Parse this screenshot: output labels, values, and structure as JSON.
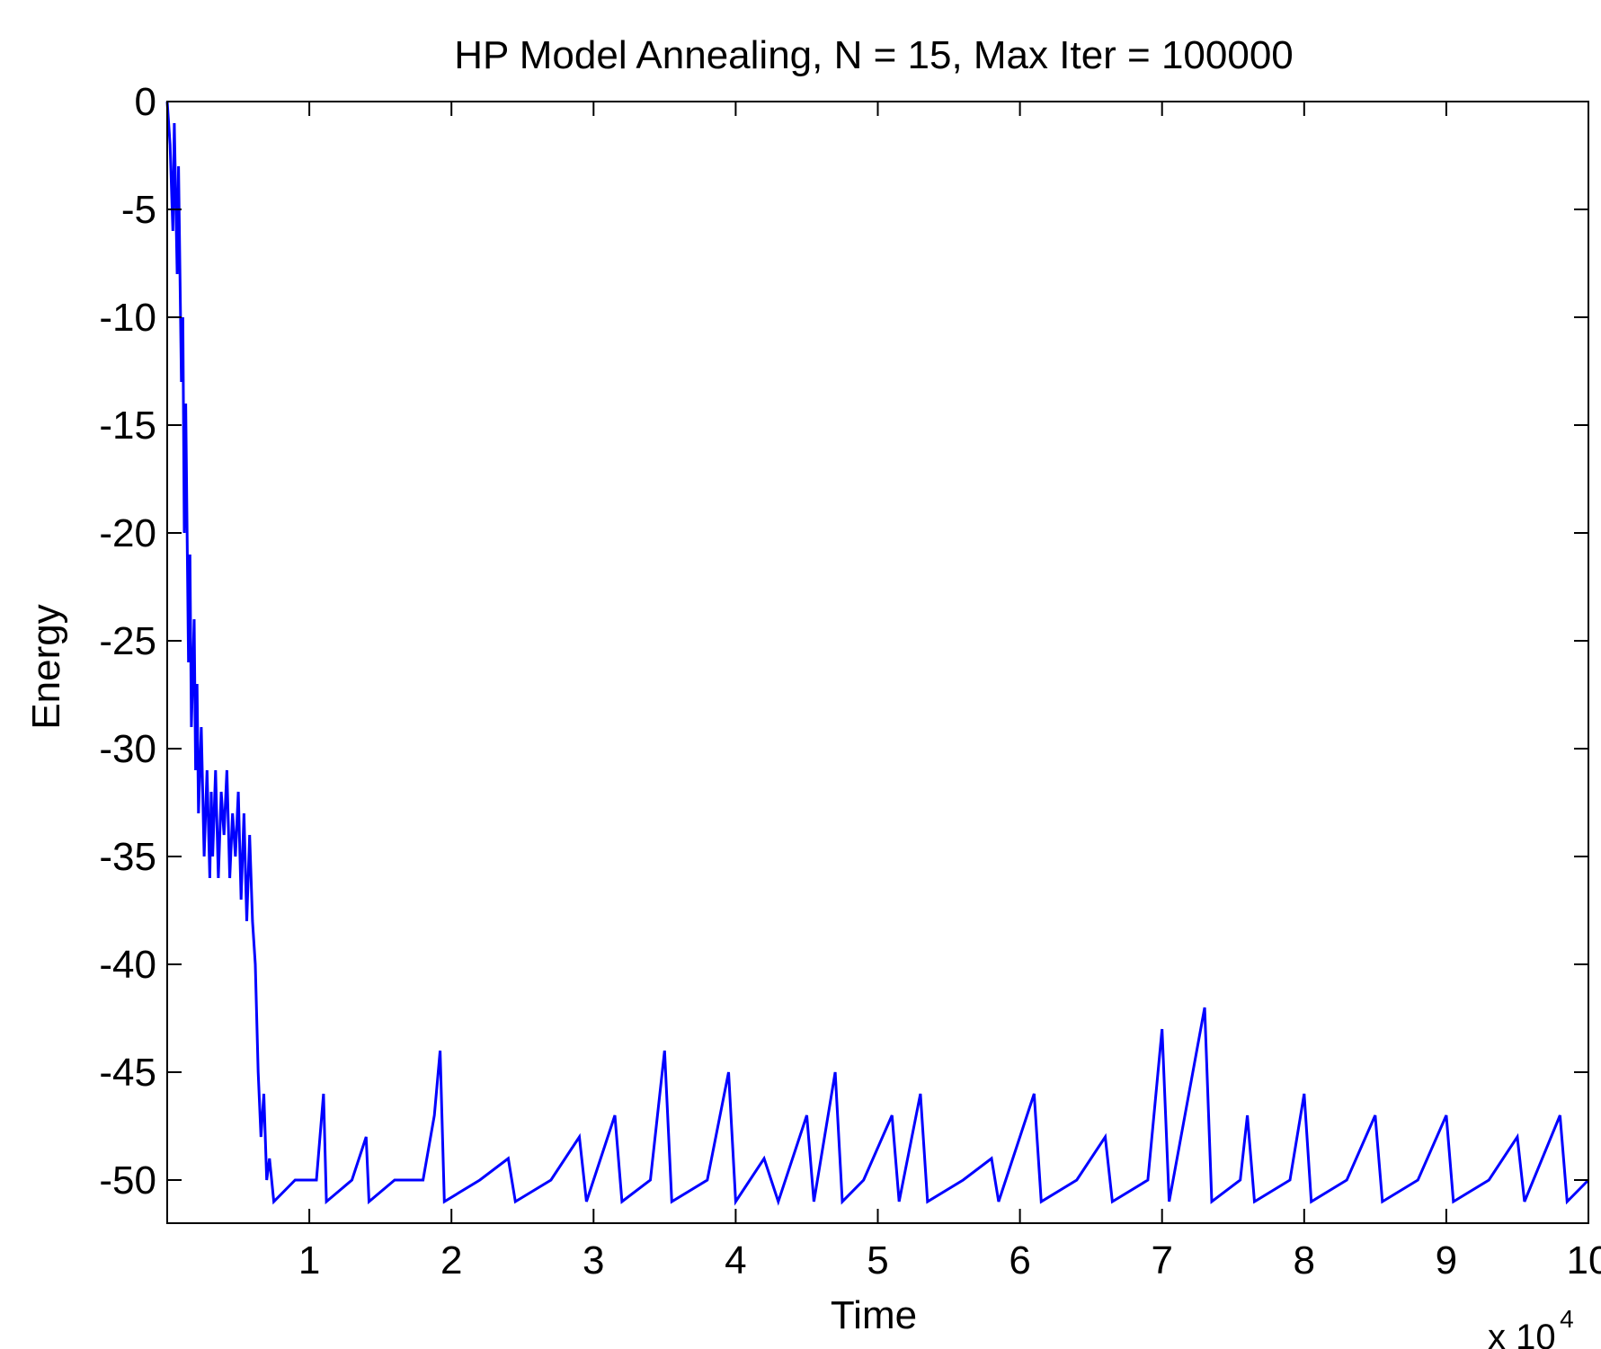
{
  "chart_data": {
    "type": "line",
    "title": "HP Model Annealing, N = 15, Max Iter = 100000",
    "xlabel": "Time",
    "ylabel": "Energy",
    "x_multiplier": {
      "base": "x 10",
      "exponent": "4"
    },
    "xlim": [
      0,
      10
    ],
    "ylim": [
      -52,
      0
    ],
    "xticks": [
      1,
      2,
      3,
      4,
      5,
      6,
      7,
      8,
      9,
      10
    ],
    "xtick_labels": [
      "1",
      "2",
      "3",
      "4",
      "5",
      "6",
      "7",
      "8",
      "9",
      "10"
    ],
    "yticks": [
      0,
      -5,
      -10,
      -15,
      -20,
      -25,
      -30,
      -35,
      -40,
      -45,
      -50
    ],
    "ytick_labels": [
      "0",
      "-5",
      "-10",
      "-15",
      "-20",
      "-25",
      "-30",
      "-35",
      "-40",
      "-45",
      "-50"
    ],
    "grid": false,
    "series": [
      {
        "color": "#0000ff",
        "points": [
          [
            0,
            0
          ],
          [
            0.02,
            -2
          ],
          [
            0.04,
            -6
          ],
          [
            0.05,
            -1
          ],
          [
            0.07,
            -8
          ],
          [
            0.08,
            -3
          ],
          [
            0.1,
            -13
          ],
          [
            0.11,
            -10
          ],
          [
            0.12,
            -20
          ],
          [
            0.13,
            -14
          ],
          [
            0.15,
            -26
          ],
          [
            0.16,
            -21
          ],
          [
            0.17,
            -29
          ],
          [
            0.19,
            -24
          ],
          [
            0.2,
            -31
          ],
          [
            0.21,
            -27
          ],
          [
            0.22,
            -33
          ],
          [
            0.24,
            -29
          ],
          [
            0.26,
            -35
          ],
          [
            0.28,
            -31
          ],
          [
            0.3,
            -36
          ],
          [
            0.31,
            -32
          ],
          [
            0.32,
            -35
          ],
          [
            0.34,
            -31
          ],
          [
            0.36,
            -36
          ],
          [
            0.38,
            -32
          ],
          [
            0.4,
            -34
          ],
          [
            0.42,
            -31
          ],
          [
            0.44,
            -36
          ],
          [
            0.46,
            -33
          ],
          [
            0.48,
            -35
          ],
          [
            0.5,
            -32
          ],
          [
            0.52,
            -37
          ],
          [
            0.54,
            -33
          ],
          [
            0.56,
            -38
          ],
          [
            0.58,
            -34
          ],
          [
            0.6,
            -38
          ],
          [
            0.62,
            -40
          ],
          [
            0.64,
            -45
          ],
          [
            0.66,
            -48
          ],
          [
            0.68,
            -46
          ],
          [
            0.7,
            -50
          ],
          [
            0.72,
            -49
          ],
          [
            0.75,
            -51
          ],
          [
            0.9,
            -50
          ],
          [
            1.05,
            -50
          ],
          [
            1.1,
            -46
          ],
          [
            1.12,
            -51
          ],
          [
            1.3,
            -50
          ],
          [
            1.4,
            -48
          ],
          [
            1.42,
            -51
          ],
          [
            1.6,
            -50
          ],
          [
            1.8,
            -50
          ],
          [
            1.88,
            -47
          ],
          [
            1.92,
            -44
          ],
          [
            1.95,
            -51
          ],
          [
            2.2,
            -50
          ],
          [
            2.4,
            -49
          ],
          [
            2.45,
            -51
          ],
          [
            2.7,
            -50
          ],
          [
            2.9,
            -48
          ],
          [
            2.95,
            -51
          ],
          [
            3.15,
            -47
          ],
          [
            3.2,
            -51
          ],
          [
            3.4,
            -50
          ],
          [
            3.5,
            -44
          ],
          [
            3.55,
            -51
          ],
          [
            3.8,
            -50
          ],
          [
            3.95,
            -45
          ],
          [
            4.0,
            -51
          ],
          [
            4.2,
            -49
          ],
          [
            4.3,
            -51
          ],
          [
            4.5,
            -47
          ],
          [
            4.55,
            -51
          ],
          [
            4.7,
            -45
          ],
          [
            4.75,
            -51
          ],
          [
            4.9,
            -50
          ],
          [
            5.1,
            -47
          ],
          [
            5.15,
            -51
          ],
          [
            5.3,
            -46
          ],
          [
            5.35,
            -51
          ],
          [
            5.6,
            -50
          ],
          [
            5.8,
            -49
          ],
          [
            5.85,
            -51
          ],
          [
            6.1,
            -46
          ],
          [
            6.15,
            -51
          ],
          [
            6.4,
            -50
          ],
          [
            6.6,
            -48
          ],
          [
            6.65,
            -51
          ],
          [
            6.9,
            -50
          ],
          [
            7.0,
            -43
          ],
          [
            7.05,
            -51
          ],
          [
            7.3,
            -42
          ],
          [
            7.35,
            -51
          ],
          [
            7.55,
            -50
          ],
          [
            7.6,
            -47
          ],
          [
            7.65,
            -51
          ],
          [
            7.9,
            -50
          ],
          [
            8.0,
            -46
          ],
          [
            8.05,
            -51
          ],
          [
            8.3,
            -50
          ],
          [
            8.5,
            -47
          ],
          [
            8.55,
            -51
          ],
          [
            8.8,
            -50
          ],
          [
            9.0,
            -47
          ],
          [
            9.05,
            -51
          ],
          [
            9.3,
            -50
          ],
          [
            9.5,
            -48
          ],
          [
            9.55,
            -51
          ],
          [
            9.8,
            -47
          ],
          [
            9.85,
            -51
          ],
          [
            10,
            -50
          ]
        ]
      }
    ]
  }
}
